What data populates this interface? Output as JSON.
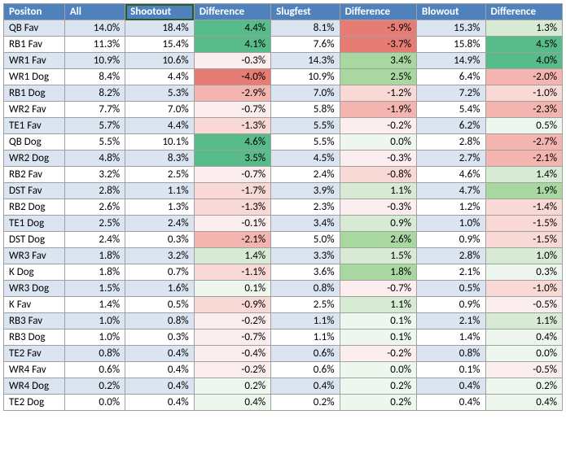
{
  "table": {
    "type": "table",
    "headers": [
      "Positon",
      "All",
      "Shootout",
      "Difference",
      "Slugfest",
      "Difference",
      "Blowout",
      "Difference"
    ],
    "selected_header_index": 2,
    "header_bg": "#4f81bd",
    "header_fg": "#ffffff",
    "band_colors": [
      "#dbe5f1",
      "#ffffff"
    ],
    "diff_color_scale": {
      "strong_neg": "#e67c73",
      "mid_neg": "#f4b5b0",
      "weak_neg": "#f8d9d6",
      "near_zero_neg": "#fceeee",
      "near_zero_pos": "#eef7ed",
      "weak_pos": "#d7ead3",
      "mid_pos": "#a8d7a0",
      "strong_pos": "#57bb8a"
    },
    "rows": [
      {
        "pos": "QB Fav",
        "all": 14.0,
        "shoot": 18.4,
        "d1": 4.4,
        "slug": 8.1,
        "d2": -5.9,
        "blow": 15.3,
        "d3": 1.3
      },
      {
        "pos": "RB1 Fav",
        "all": 11.3,
        "shoot": 15.4,
        "d1": 4.1,
        "slug": 7.6,
        "d2": -3.7,
        "blow": 15.8,
        "d3": 4.5
      },
      {
        "pos": "WR1 Fav",
        "all": 10.9,
        "shoot": 10.6,
        "d1": -0.3,
        "slug": 14.3,
        "d2": 3.4,
        "blow": 14.9,
        "d3": 4.0
      },
      {
        "pos": "WR1 Dog",
        "all": 8.4,
        "shoot": 4.4,
        "d1": -4.0,
        "slug": 10.9,
        "d2": 2.5,
        "blow": 6.4,
        "d3": -2.0
      },
      {
        "pos": "RB1 Dog",
        "all": 8.2,
        "shoot": 5.3,
        "d1": -2.9,
        "slug": 7.0,
        "d2": -1.2,
        "blow": 7.2,
        "d3": -1.0
      },
      {
        "pos": "WR2 Fav",
        "all": 7.7,
        "shoot": 7.0,
        "d1": -0.7,
        "slug": 5.8,
        "d2": -1.9,
        "blow": 5.4,
        "d3": -2.3
      },
      {
        "pos": "TE1 Fav",
        "all": 5.7,
        "shoot": 4.4,
        "d1": -1.3,
        "slug": 5.5,
        "d2": -0.2,
        "blow": 6.2,
        "d3": 0.5
      },
      {
        "pos": "QB Dog",
        "all": 5.5,
        "shoot": 10.1,
        "d1": 4.6,
        "slug": 5.5,
        "d2": 0.0,
        "blow": 2.8,
        "d3": -2.7
      },
      {
        "pos": "WR2 Dog",
        "all": 4.8,
        "shoot": 8.3,
        "d1": 3.5,
        "slug": 4.5,
        "d2": -0.3,
        "blow": 2.7,
        "d3": -2.1
      },
      {
        "pos": "RB2 Fav",
        "all": 3.2,
        "shoot": 2.5,
        "d1": -0.7,
        "slug": 2.4,
        "d2": -0.8,
        "blow": 4.6,
        "d3": 1.4
      },
      {
        "pos": "DST Fav",
        "all": 2.8,
        "shoot": 1.1,
        "d1": -1.7,
        "slug": 3.9,
        "d2": 1.1,
        "blow": 4.7,
        "d3": 1.9
      },
      {
        "pos": "RB2 Dog",
        "all": 2.6,
        "shoot": 1.3,
        "d1": -1.3,
        "slug": 2.3,
        "d2": -0.3,
        "blow": 1.2,
        "d3": -1.4
      },
      {
        "pos": "TE1 Dog",
        "all": 2.5,
        "shoot": 2.4,
        "d1": -0.1,
        "slug": 3.4,
        "d2": 0.9,
        "blow": 1.0,
        "d3": -1.5
      },
      {
        "pos": "DST Dog",
        "all": 2.4,
        "shoot": 0.3,
        "d1": -2.1,
        "slug": 5.0,
        "d2": 2.6,
        "blow": 0.9,
        "d3": -1.5
      },
      {
        "pos": "WR3 Fav",
        "all": 1.8,
        "shoot": 3.2,
        "d1": 1.4,
        "slug": 3.3,
        "d2": 1.5,
        "blow": 2.8,
        "d3": 1.0
      },
      {
        "pos": "K Dog",
        "all": 1.8,
        "shoot": 0.7,
        "d1": -1.1,
        "slug": 3.6,
        "d2": 1.8,
        "blow": 2.1,
        "d3": 0.3
      },
      {
        "pos": "WR3 Dog",
        "all": 1.5,
        "shoot": 1.6,
        "d1": 0.1,
        "slug": 0.8,
        "d2": -0.7,
        "blow": 0.5,
        "d3": -1.0
      },
      {
        "pos": "K Fav",
        "all": 1.4,
        "shoot": 0.5,
        "d1": -0.9,
        "slug": 2.5,
        "d2": 1.1,
        "blow": 0.9,
        "d3": -0.5
      },
      {
        "pos": "RB3 Fav",
        "all": 1.0,
        "shoot": 0.8,
        "d1": -0.2,
        "slug": 1.1,
        "d2": 0.1,
        "blow": 2.1,
        "d3": 1.1
      },
      {
        "pos": "RB3 Dog",
        "all": 1.0,
        "shoot": 0.3,
        "d1": -0.7,
        "slug": 1.1,
        "d2": 0.1,
        "blow": 1.4,
        "d3": 0.4
      },
      {
        "pos": "TE2 Fav",
        "all": 0.8,
        "shoot": 0.4,
        "d1": -0.4,
        "slug": 0.6,
        "d2": -0.2,
        "blow": 0.8,
        "d3": 0.0
      },
      {
        "pos": "WR4 Fav",
        "all": 0.6,
        "shoot": 0.4,
        "d1": -0.2,
        "slug": 0.6,
        "d2": 0.0,
        "blow": 0.1,
        "d3": -0.5
      },
      {
        "pos": "WR4 Dog",
        "all": 0.2,
        "shoot": 0.4,
        "d1": 0.2,
        "slug": 0.4,
        "d2": 0.2,
        "blow": 0.4,
        "d3": 0.2
      },
      {
        "pos": "TE2 Dog",
        "all": 0.0,
        "shoot": 0.4,
        "d1": 0.4,
        "slug": 0.2,
        "d2": 0.2,
        "blow": 0.4,
        "d3": 0.4
      }
    ]
  }
}
